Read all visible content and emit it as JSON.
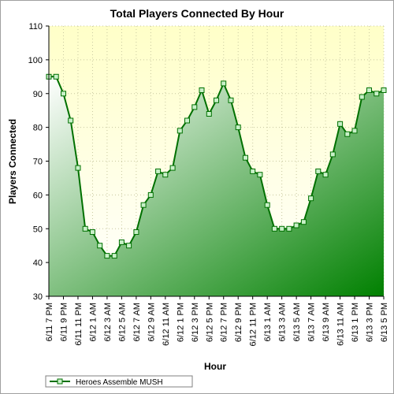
{
  "chart_data": {
    "type": "area",
    "title": "Total Players Connected By Hour",
    "xlabel": "Hour",
    "ylabel": "Players Connected",
    "ylim": [
      30,
      110
    ],
    "yticks": [
      30,
      40,
      50,
      60,
      70,
      80,
      90,
      100,
      110
    ],
    "grid": true,
    "legend_position": "bottom-left",
    "xtick_labels": [
      "6/11 7 PM",
      "6/11 9 PM",
      "6/11 11 PM",
      "6/12 1 AM",
      "6/12 3 AM",
      "6/12 5 AM",
      "6/12 7 AM",
      "6/12 9 AM",
      "6/12 11 AM",
      "6/12 1 PM",
      "6/12 3 PM",
      "6/12 5 PM",
      "6/12 7 PM",
      "6/12 9 PM",
      "6/12 11 PM",
      "6/13 1 AM",
      "6/13 3 AM",
      "6/13 5 AM",
      "6/13 7 AM",
      "6/13 9 AM",
      "6/13 11 AM",
      "6/13 1 PM",
      "6/13 3 PM",
      "6/13 5 PM"
    ],
    "series": [
      {
        "name": "Heroes Assemble MUSH",
        "values": [
          95,
          95,
          90,
          82,
          68,
          50,
          49,
          45,
          42,
          42,
          46,
          45,
          49,
          57,
          60,
          67,
          66,
          68,
          79,
          82,
          86,
          91,
          84,
          88,
          93,
          88,
          80,
          71,
          67,
          66,
          57,
          50,
          50,
          50,
          51,
          52,
          59,
          67,
          66,
          72,
          81,
          78,
          79,
          89,
          91,
          90,
          91
        ]
      }
    ],
    "colors": {
      "plot_background_top": "#ffffc8",
      "plot_background_bottom": "#ffffff",
      "area_light": "#ffffff",
      "area_dark": "#008000",
      "line": "#007000",
      "marker_fill": "#c8f0c8",
      "grid": "#c8c8a0"
    }
  }
}
